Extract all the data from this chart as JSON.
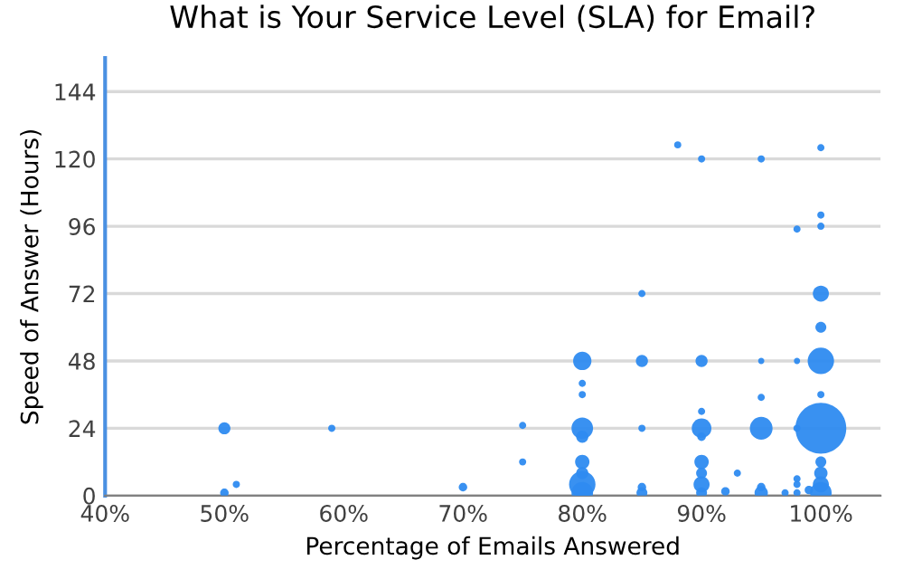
{
  "chart_data": {
    "type": "bubble",
    "title": "What is Your Service Level (SLA) for Email?",
    "xlabel": "Percentage of Emails Answered",
    "ylabel": "Speed of Answer (Hours)",
    "xlim": [
      40,
      105
    ],
    "xticks": [
      {
        "value": 40,
        "label": "40%"
      },
      {
        "value": 50,
        "label": "50%"
      },
      {
        "value": 60,
        "label": "60%"
      },
      {
        "value": 70,
        "label": "70%"
      },
      {
        "value": 80,
        "label": "80%"
      },
      {
        "value": 90,
        "label": "90%"
      },
      {
        "value": 100,
        "label": "100%"
      }
    ],
    "ylim": [
      0,
      156
    ],
    "yticks": [
      0,
      24,
      48,
      72,
      96,
      120,
      144
    ],
    "grid": "y",
    "series": [
      {
        "color": "#2e8bf0",
        "x": [
          50,
          50,
          51,
          59,
          70,
          75,
          75,
          80,
          80,
          80,
          80,
          80,
          80,
          80,
          80,
          80,
          85,
          85,
          85,
          85,
          85,
          88,
          90,
          90,
          90,
          90,
          90,
          90,
          90,
          90,
          90,
          92,
          93,
          95,
          95,
          95,
          95,
          95,
          95,
          97,
          98,
          98,
          98,
          98,
          98,
          98,
          99,
          100,
          100,
          100,
          100,
          100,
          100,
          100,
          100,
          100,
          100,
          100,
          100
        ],
        "values": [
          24,
          1,
          4,
          24,
          3,
          25,
          12,
          48,
          40,
          36,
          24,
          21,
          12,
          8,
          4,
          1,
          72,
          48,
          24,
          3,
          1,
          125,
          120,
          48,
          30,
          24,
          21,
          12,
          8,
          4,
          1,
          1.5,
          8,
          120,
          48,
          35,
          24,
          3,
          1,
          1,
          95,
          48,
          24,
          6,
          4,
          1,
          2,
          124,
          100,
          96,
          72,
          60,
          48,
          36,
          24,
          12,
          8,
          4,
          1
        ],
        "sizes": [
          0.057,
          0.028,
          0.02,
          0.02,
          0.028,
          0.02,
          0.02,
          0.13,
          0.02,
          0.02,
          0.18,
          0.057,
          0.08,
          0.057,
          0.27,
          0.18,
          0.02,
          0.057,
          0.02,
          0.028,
          0.046,
          0.02,
          0.02,
          0.057,
          0.02,
          0.15,
          0.028,
          0.08,
          0.046,
          0.1,
          0.046,
          0.028,
          0.02,
          0.02,
          0.015,
          0.02,
          0.2,
          0.028,
          0.069,
          0.02,
          0.02,
          0.015,
          0.02,
          0.02,
          0.02,
          0.02,
          0.028,
          0.02,
          0.02,
          0.02,
          0.1,
          0.046,
          0.27,
          0.02,
          1,
          0.046,
          0.069,
          0.1,
          0.18
        ]
      }
    ]
  }
}
